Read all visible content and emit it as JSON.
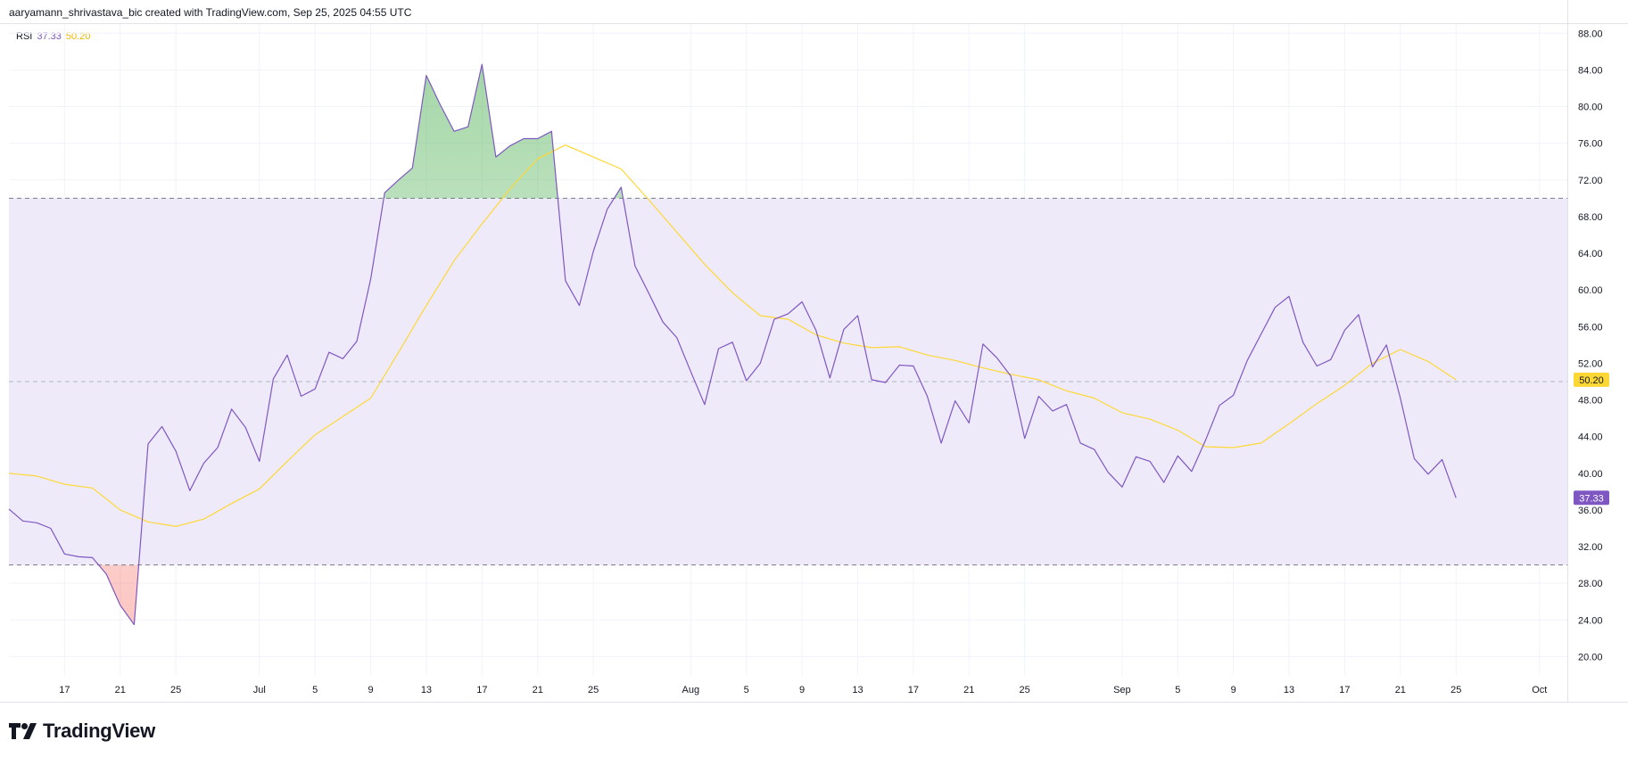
{
  "header": {
    "caption": "aaryamann_shrivastava_bic created with TradingView.com, Sep 25, 2025 04:55 UTC"
  },
  "legend": {
    "indicator": "RSI",
    "rsi_value": "37.33",
    "ma_value": "50.20"
  },
  "brand": {
    "name": "TradingView"
  },
  "colors": {
    "rsi_line": "#7e57c2",
    "ma_line": "#fdd835",
    "band_fill": "#efeafa",
    "overbought_fill": "#4caf50",
    "oversold_fill": "#f44336",
    "grid": "#f0f3fa",
    "axis_text": "#131722"
  },
  "chart_data": {
    "type": "line",
    "title": "",
    "xlabel": "",
    "ylabel": "",
    "ylim": [
      18,
      89
    ],
    "yticks": [
      "20.00",
      "24.00",
      "28.00",
      "32.00",
      "36.00",
      "40.00",
      "44.00",
      "48.00",
      "52.00",
      "56.00",
      "60.00",
      "64.00",
      "68.00",
      "72.00",
      "76.00",
      "80.00",
      "84.00",
      "88.00"
    ],
    "band": {
      "upper": 70,
      "middle": 50,
      "lower": 30
    },
    "x_range": [
      "2025-06-13",
      "2025-10-03"
    ],
    "xticks": [
      {
        "date": "2025-06-17",
        "label": "17"
      },
      {
        "date": "2025-06-21",
        "label": "21"
      },
      {
        "date": "2025-06-25",
        "label": "25"
      },
      {
        "date": "2025-07-01",
        "label": "Jul"
      },
      {
        "date": "2025-07-05",
        "label": "5"
      },
      {
        "date": "2025-07-09",
        "label": "9"
      },
      {
        "date": "2025-07-13",
        "label": "13"
      },
      {
        "date": "2025-07-17",
        "label": "17"
      },
      {
        "date": "2025-07-21",
        "label": "21"
      },
      {
        "date": "2025-07-25",
        "label": "25"
      },
      {
        "date": "2025-08-01",
        "label": "Aug"
      },
      {
        "date": "2025-08-05",
        "label": "5"
      },
      {
        "date": "2025-08-09",
        "label": "9"
      },
      {
        "date": "2025-08-13",
        "label": "13"
      },
      {
        "date": "2025-08-17",
        "label": "17"
      },
      {
        "date": "2025-08-21",
        "label": "21"
      },
      {
        "date": "2025-08-25",
        "label": "25"
      },
      {
        "date": "2025-09-01",
        "label": "Sep"
      },
      {
        "date": "2025-09-05",
        "label": "5"
      },
      {
        "date": "2025-09-09",
        "label": "9"
      },
      {
        "date": "2025-09-13",
        "label": "13"
      },
      {
        "date": "2025-09-17",
        "label": "17"
      },
      {
        "date": "2025-09-21",
        "label": "21"
      },
      {
        "date": "2025-09-25",
        "label": "25"
      },
      {
        "date": "2025-10-01",
        "label": "Oct"
      }
    ],
    "series": [
      {
        "name": "RSI",
        "x": [
          "2025-06-13",
          "2025-06-14",
          "2025-06-15",
          "2025-06-16",
          "2025-06-17",
          "2025-06-18",
          "2025-06-19",
          "2025-06-20",
          "2025-06-21",
          "2025-06-22",
          "2025-06-23",
          "2025-06-24",
          "2025-06-25",
          "2025-06-26",
          "2025-06-27",
          "2025-06-28",
          "2025-06-29",
          "2025-06-30",
          "2025-07-01",
          "2025-07-02",
          "2025-07-03",
          "2025-07-04",
          "2025-07-05",
          "2025-07-06",
          "2025-07-07",
          "2025-07-08",
          "2025-07-09",
          "2025-07-10",
          "2025-07-11",
          "2025-07-12",
          "2025-07-13",
          "2025-07-14",
          "2025-07-15",
          "2025-07-16",
          "2025-07-17",
          "2025-07-18",
          "2025-07-19",
          "2025-07-20",
          "2025-07-21",
          "2025-07-22",
          "2025-07-23",
          "2025-07-24",
          "2025-07-25",
          "2025-07-26",
          "2025-07-27",
          "2025-07-28",
          "2025-07-29",
          "2025-07-30",
          "2025-07-31",
          "2025-08-01",
          "2025-08-02",
          "2025-08-03",
          "2025-08-04",
          "2025-08-05",
          "2025-08-06",
          "2025-08-07",
          "2025-08-08",
          "2025-08-09",
          "2025-08-10",
          "2025-08-11",
          "2025-08-12",
          "2025-08-13",
          "2025-08-14",
          "2025-08-15",
          "2025-08-16",
          "2025-08-17",
          "2025-08-18",
          "2025-08-19",
          "2025-08-20",
          "2025-08-21",
          "2025-08-22",
          "2025-08-23",
          "2025-08-24",
          "2025-08-25",
          "2025-08-26",
          "2025-08-27",
          "2025-08-28",
          "2025-08-29",
          "2025-08-30",
          "2025-08-31",
          "2025-09-01",
          "2025-09-02",
          "2025-09-03",
          "2025-09-04",
          "2025-09-05",
          "2025-09-06",
          "2025-09-07",
          "2025-09-08",
          "2025-09-09",
          "2025-09-10",
          "2025-09-11",
          "2025-09-12",
          "2025-09-13",
          "2025-09-14",
          "2025-09-15",
          "2025-09-16",
          "2025-09-17",
          "2025-09-18",
          "2025-09-19",
          "2025-09-20",
          "2025-09-21",
          "2025-09-22",
          "2025-09-23",
          "2025-09-24",
          "2025-09-25"
        ],
        "values": [
          36.1,
          34.8,
          34.6,
          34.0,
          31.2,
          30.9,
          30.8,
          29.0,
          25.6,
          23.5,
          43.2,
          45.1,
          42.4,
          38.1,
          41.1,
          42.8,
          47.0,
          45.0,
          41.3,
          50.3,
          52.9,
          48.4,
          49.2,
          53.2,
          52.5,
          54.4,
          61.2,
          70.6,
          72.0,
          73.3,
          83.4,
          80.2,
          77.3,
          77.8,
          84.6,
          74.5,
          75.7,
          76.5,
          76.5,
          77.3,
          61.0,
          58.3,
          64.2,
          68.8,
          71.2,
          62.6,
          59.6,
          56.5,
          54.8,
          51.1,
          47.5,
          53.6,
          54.3,
          50.1,
          52.0,
          56.8,
          57.4,
          58.7,
          55.6,
          50.4,
          55.7,
          57.2,
          50.2,
          49.9,
          51.8,
          51.7,
          48.4,
          43.3,
          47.9,
          45.5,
          54.1,
          52.6,
          50.6,
          43.8,
          48.4,
          46.8,
          47.5,
          43.3,
          42.6,
          40.1,
          38.5,
          41.8,
          41.3,
          39.0,
          41.9,
          40.2,
          43.6,
          47.4,
          48.5,
          52.3,
          55.2,
          58.1,
          59.3,
          54.3,
          51.7,
          52.4,
          55.6,
          57.3,
          51.6,
          54.0,
          48.2,
          41.6,
          39.9,
          41.5,
          37.33
        ]
      },
      {
        "name": "RSI-based MA",
        "x": [
          "2025-06-13",
          "2025-06-15",
          "2025-06-17",
          "2025-06-19",
          "2025-06-21",
          "2025-06-23",
          "2025-06-25",
          "2025-06-27",
          "2025-06-29",
          "2025-07-01",
          "2025-07-03",
          "2025-07-05",
          "2025-07-07",
          "2025-07-09",
          "2025-07-11",
          "2025-07-13",
          "2025-07-15",
          "2025-07-17",
          "2025-07-19",
          "2025-07-21",
          "2025-07-23",
          "2025-07-25",
          "2025-07-27",
          "2025-07-29",
          "2025-07-31",
          "2025-08-02",
          "2025-08-04",
          "2025-08-06",
          "2025-08-08",
          "2025-08-10",
          "2025-08-12",
          "2025-08-14",
          "2025-08-16",
          "2025-08-18",
          "2025-08-20",
          "2025-08-22",
          "2025-08-24",
          "2025-08-26",
          "2025-08-28",
          "2025-08-30",
          "2025-09-01",
          "2025-09-03",
          "2025-09-05",
          "2025-09-07",
          "2025-09-09",
          "2025-09-11",
          "2025-09-13",
          "2025-09-15",
          "2025-09-17",
          "2025-09-19",
          "2025-09-21",
          "2025-09-23",
          "2025-09-25"
        ],
        "values": [
          40.0,
          39.7,
          38.8,
          38.4,
          36.0,
          34.7,
          34.2,
          35.0,
          36.7,
          38.3,
          41.3,
          44.2,
          46.2,
          48.2,
          53.2,
          58.3,
          63.2,
          67.2,
          71.0,
          74.3,
          75.8,
          74.5,
          73.2,
          69.8,
          66.3,
          62.8,
          59.7,
          57.2,
          56.8,
          55.1,
          54.2,
          53.7,
          53.8,
          52.9,
          52.3,
          51.5,
          50.8,
          50.2,
          49.0,
          48.2,
          46.6,
          45.9,
          44.7,
          42.9,
          42.8,
          43.3,
          45.4,
          47.6,
          49.6,
          52.0,
          53.5,
          52.2,
          50.2
        ]
      }
    ],
    "last_value_badges": [
      {
        "series": "RSI-based MA",
        "value": "50.20"
      },
      {
        "series": "RSI",
        "value": "37.33"
      }
    ]
  }
}
